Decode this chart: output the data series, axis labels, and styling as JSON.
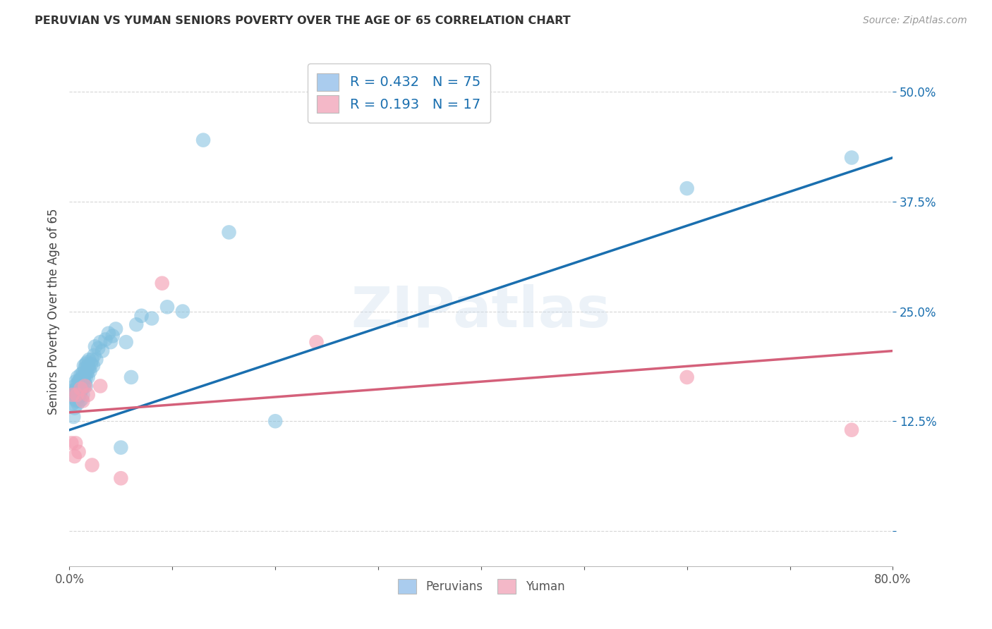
{
  "title": "PERUVIAN VS YUMAN SENIORS POVERTY OVER THE AGE OF 65 CORRELATION CHART",
  "source": "Source: ZipAtlas.com",
  "ylabel": "Seniors Poverty Over the Age of 65",
  "xlim": [
    0.0,
    0.8
  ],
  "ylim": [
    -0.04,
    0.54
  ],
  "xtick_positions": [
    0.0,
    0.1,
    0.2,
    0.3,
    0.4,
    0.5,
    0.6,
    0.7,
    0.8
  ],
  "xticklabels": [
    "0.0%",
    "",
    "",
    "",
    "",
    "",
    "",
    "",
    "80.0%"
  ],
  "ytick_positions": [
    0.0,
    0.125,
    0.25,
    0.375,
    0.5
  ],
  "yticklabels": [
    "",
    "12.5%",
    "25.0%",
    "37.5%",
    "50.0%"
  ],
  "R_peruvian": 0.432,
  "N_peruvian": 75,
  "R_yuman": 0.193,
  "N_yuman": 17,
  "blue_scatter_color": "#7fbfdf",
  "blue_line_color": "#1a6faf",
  "pink_scatter_color": "#f4a0b5",
  "pink_line_color": "#d4607a",
  "legend_blue_face": "#aaccee",
  "legend_pink_face": "#f4b8c8",
  "watermark": "ZIPatlas",
  "peruvian_x": [
    0.003,
    0.004,
    0.004,
    0.005,
    0.005,
    0.005,
    0.006,
    0.006,
    0.006,
    0.007,
    0.007,
    0.007,
    0.008,
    0.008,
    0.008,
    0.008,
    0.009,
    0.009,
    0.009,
    0.01,
    0.01,
    0.01,
    0.01,
    0.011,
    0.011,
    0.011,
    0.012,
    0.012,
    0.012,
    0.013,
    0.013,
    0.013,
    0.014,
    0.014,
    0.014,
    0.015,
    0.015,
    0.015,
    0.016,
    0.016,
    0.016,
    0.017,
    0.017,
    0.018,
    0.018,
    0.019,
    0.019,
    0.02,
    0.021,
    0.022,
    0.023,
    0.024,
    0.025,
    0.026,
    0.028,
    0.03,
    0.032,
    0.035,
    0.038,
    0.04,
    0.042,
    0.045,
    0.05,
    0.055,
    0.06,
    0.065,
    0.07,
    0.08,
    0.095,
    0.11,
    0.13,
    0.155,
    0.2,
    0.6,
    0.76
  ],
  "peruvian_y": [
    0.145,
    0.13,
    0.16,
    0.155,
    0.14,
    0.165,
    0.15,
    0.16,
    0.17,
    0.148,
    0.155,
    0.162,
    0.158,
    0.168,
    0.175,
    0.145,
    0.16,
    0.17,
    0.152,
    0.165,
    0.155,
    0.172,
    0.148,
    0.168,
    0.178,
    0.158,
    0.162,
    0.175,
    0.15,
    0.17,
    0.18,
    0.155,
    0.165,
    0.175,
    0.188,
    0.178,
    0.168,
    0.185,
    0.175,
    0.165,
    0.19,
    0.18,
    0.192,
    0.188,
    0.175,
    0.185,
    0.195,
    0.182,
    0.19,
    0.195,
    0.188,
    0.2,
    0.21,
    0.195,
    0.208,
    0.215,
    0.205,
    0.218,
    0.225,
    0.215,
    0.222,
    0.23,
    0.095,
    0.215,
    0.175,
    0.235,
    0.245,
    0.242,
    0.255,
    0.25,
    0.445,
    0.34,
    0.125,
    0.39,
    0.425
  ],
  "yuman_x": [
    0.002,
    0.003,
    0.005,
    0.006,
    0.007,
    0.009,
    0.011,
    0.013,
    0.015,
    0.018,
    0.022,
    0.03,
    0.05,
    0.09,
    0.24,
    0.6,
    0.76
  ],
  "yuman_y": [
    0.1,
    0.155,
    0.085,
    0.1,
    0.155,
    0.09,
    0.162,
    0.148,
    0.165,
    0.155,
    0.075,
    0.165,
    0.06,
    0.282,
    0.215,
    0.175,
    0.115
  ]
}
